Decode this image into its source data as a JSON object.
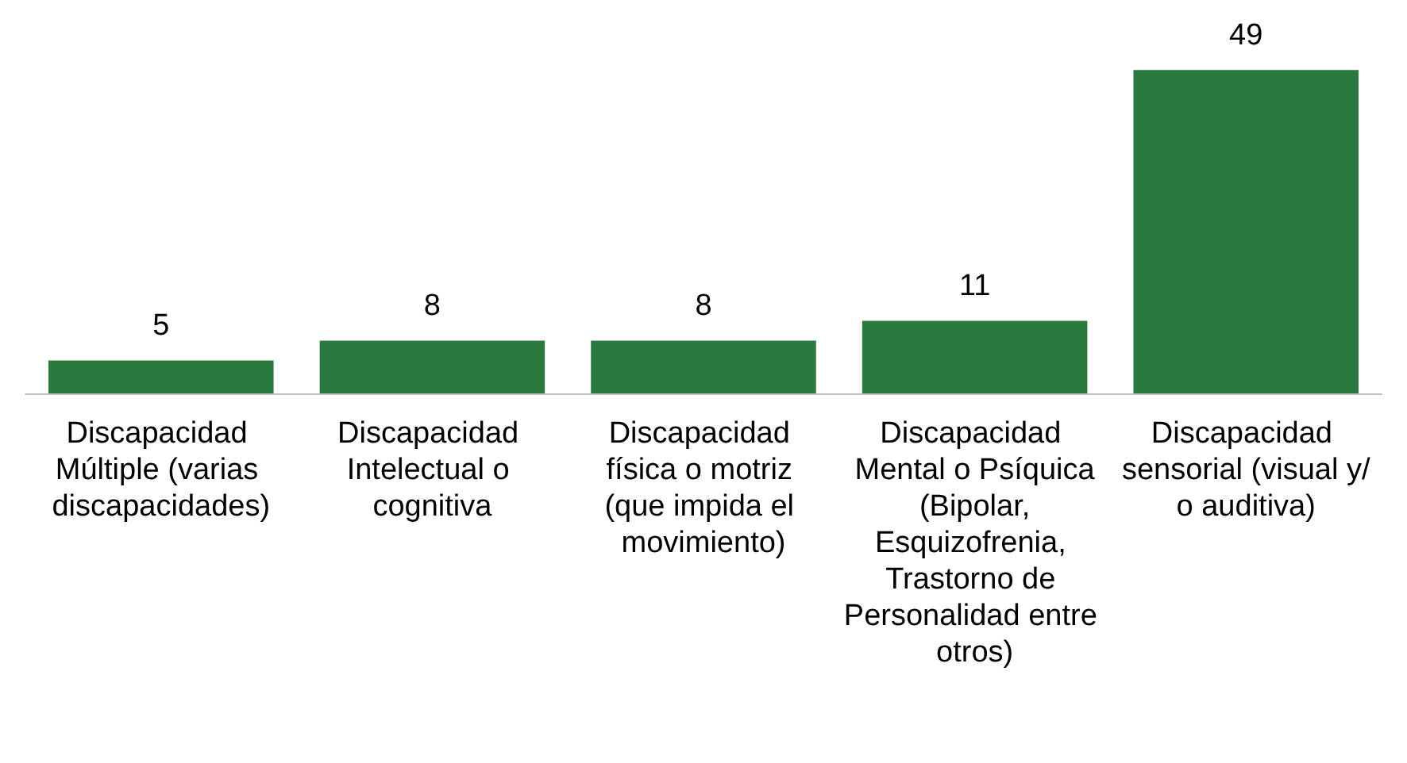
{
  "chart_data": {
    "type": "bar",
    "categories": [
      "Discapacidad Múltiple (varias discapacidades)",
      "Discapacidad Intelectual o cognitiva",
      "Discapacidad física o motriz (que impida el movimiento)",
      "Discapacidad Mental o Psíquica (Bipolar, Esquizofrenia, Trastorno de Personalidad entre otros)",
      "Discapacidad sensorial (visual y/o auditiva)"
    ],
    "values": [
      5,
      8,
      8,
      11,
      49
    ],
    "color": "#2a7a3f",
    "data_labels": true
  }
}
